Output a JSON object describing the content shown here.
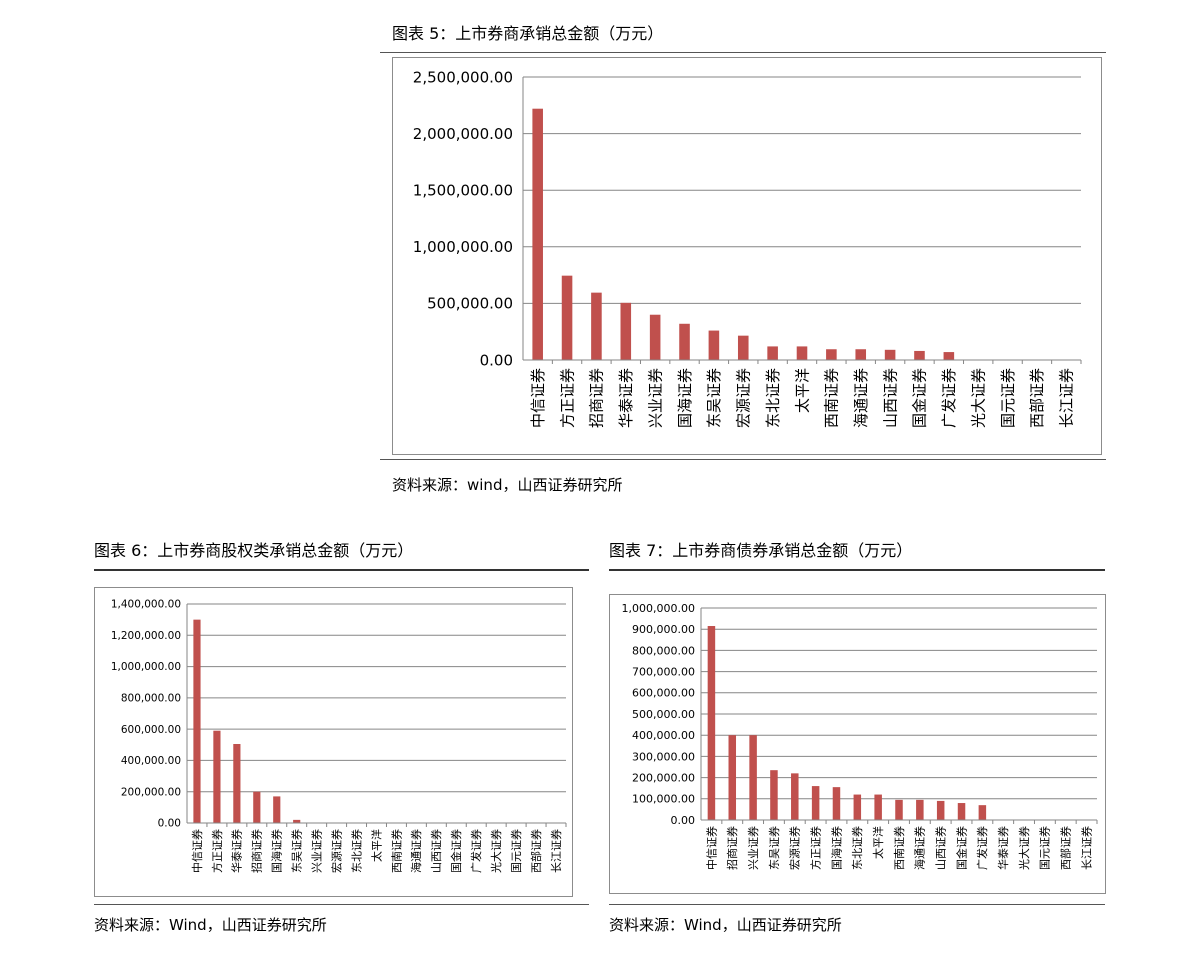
{
  "charts": {
    "c5": {
      "title": "图表 5：上市券商承销总金额（万元）",
      "source": "资料来源：wind，山西证券研究所"
    },
    "c6": {
      "title": "图表 6：上市券商股权类承销总金额（万元）",
      "source": "资料来源：Wind，山西证券研究所"
    },
    "c7": {
      "title": "图表 7：上市券商债券承销总金额（万元）",
      "source": "资料来源：Wind，山西证券研究所"
    }
  },
  "colors": {
    "bar": "#C0504D",
    "grid": "#868686"
  },
  "chart_data": [
    {
      "type": "bar",
      "title": "图表 5：上市券商承销总金额（万元）",
      "categories": [
        "中信证券",
        "方正证券",
        "招商证券",
        "华泰证券",
        "兴业证券",
        "国海证券",
        "东吴证券",
        "宏源证券",
        "东北证券",
        "太平洋",
        "西南证券",
        "海通证券",
        "山西证券",
        "国金证券",
        "广发证券",
        "光大证券",
        "国元证券",
        "西部证券",
        "长江证券"
      ],
      "values": [
        2220000,
        745000,
        595000,
        505000,
        400000,
        320000,
        260000,
        215000,
        120000,
        120000,
        95000,
        95000,
        90000,
        80000,
        70000,
        0,
        0,
        0,
        0
      ],
      "ylim": [
        0,
        2500000
      ],
      "yticks": [
        "0.00",
        "500,000.00",
        "1,000,000.00",
        "1,500,000.00",
        "2,000,000.00",
        "2,500,000.00"
      ],
      "grid": true
    },
    {
      "type": "bar",
      "title": "图表 6：上市券商股权类承销总金额（万元）",
      "categories": [
        "中信证券",
        "方正证券",
        "华泰证券",
        "招商证券",
        "国海证券",
        "东吴证券",
        "兴业证券",
        "宏源证券",
        "东北证券",
        "太平洋",
        "西南证券",
        "海通证券",
        "山西证券",
        "国金证券",
        "广发证券",
        "光大证券",
        "国元证券",
        "西部证券",
        "长江证券"
      ],
      "values": [
        1300000,
        590000,
        505000,
        200000,
        170000,
        20000,
        0,
        0,
        0,
        0,
        0,
        0,
        0,
        0,
        0,
        0,
        0,
        0,
        0
      ],
      "ylim": [
        0,
        1400000
      ],
      "yticks": [
        "0.00",
        "200,000.00",
        "400,000.00",
        "600,000.00",
        "800,000.00",
        "1,000,000.00",
        "1,200,000.00",
        "1,400,000.00"
      ],
      "grid": true
    },
    {
      "type": "bar",
      "title": "图表 7：上市券商债券承销总金额（万元）",
      "categories": [
        "中信证券",
        "招商证券",
        "兴业证券",
        "东吴证券",
        "宏源证券",
        "方正证券",
        "国海证券",
        "东北证券",
        "太平洋",
        "西南证券",
        "海通证券",
        "山西证券",
        "国金证券",
        "广发证券",
        "华泰证券",
        "光大证券",
        "国元证券",
        "西部证券",
        "长江证券"
      ],
      "values": [
        915000,
        400000,
        400000,
        235000,
        220000,
        160000,
        155000,
        120000,
        120000,
        95000,
        95000,
        90000,
        80000,
        70000,
        0,
        0,
        0,
        0,
        0
      ],
      "ylim": [
        0,
        1000000
      ],
      "yticks": [
        "0.00",
        "100,000.00",
        "200,000.00",
        "300,000.00",
        "400,000.00",
        "500,000.00",
        "600,000.00",
        "700,000.00",
        "800,000.00",
        "900,000.00",
        "1,000,000.00"
      ],
      "grid": true
    }
  ]
}
